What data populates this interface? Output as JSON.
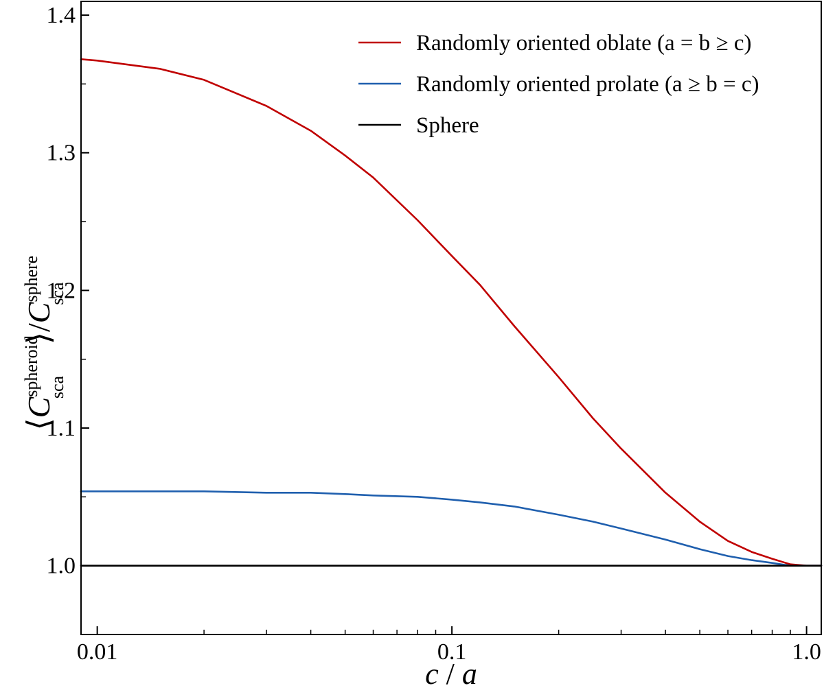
{
  "chart_data": {
    "type": "line",
    "xlabel": {
      "main": "c",
      "sep": " / ",
      "den": "a"
    },
    "ylabel": {
      "open": "⟨",
      "sym": "C",
      "sup1": "spheroid",
      "sub1": "sca",
      "close": "⟩/",
      "sym2": "C",
      "sup2": "sphere",
      "sub2": "sca"
    },
    "xscale": "log",
    "xlim": [
      0.009,
      1.1
    ],
    "ylim": [
      0.95,
      1.41
    ],
    "xticks": [
      {
        "value": 0.01,
        "label": "0.01"
      },
      {
        "value": 0.1,
        "label": "0.1"
      },
      {
        "value": 1.0,
        "label": "1.0"
      }
    ],
    "yticks": [
      {
        "value": 1.0,
        "label": "1.0"
      },
      {
        "value": 1.1,
        "label": "1.1"
      },
      {
        "value": 1.2,
        "label": "1.2"
      },
      {
        "value": 1.3,
        "label": "1.3"
      },
      {
        "value": 1.4,
        "label": "1.4"
      }
    ],
    "grid": false,
    "legend_position": "top-right",
    "series": [
      {
        "name": "Randomly oriented oblate (a = b ≥ c)",
        "color": "#c00000",
        "x": [
          0.009,
          0.01,
          0.015,
          0.02,
          0.03,
          0.04,
          0.05,
          0.06,
          0.08,
          0.1,
          0.12,
          0.15,
          0.2,
          0.25,
          0.3,
          0.4,
          0.5,
          0.6,
          0.7,
          0.8,
          0.9,
          1.0,
          1.1
        ],
        "y": [
          1.368,
          1.367,
          1.361,
          1.353,
          1.334,
          1.316,
          1.298,
          1.282,
          1.251,
          1.225,
          1.204,
          1.174,
          1.137,
          1.107,
          1.085,
          1.053,
          1.032,
          1.018,
          1.01,
          1.005,
          1.001,
          1.0,
          1.0
        ]
      },
      {
        "name": "Randomly oriented prolate (a ≥ b = c)",
        "color": "#1f5fae",
        "x": [
          0.009,
          0.01,
          0.015,
          0.02,
          0.03,
          0.04,
          0.05,
          0.06,
          0.08,
          0.1,
          0.12,
          0.15,
          0.2,
          0.25,
          0.3,
          0.4,
          0.5,
          0.6,
          0.7,
          0.8,
          0.9,
          1.0,
          1.1
        ],
        "y": [
          1.054,
          1.054,
          1.054,
          1.054,
          1.053,
          1.053,
          1.052,
          1.051,
          1.05,
          1.048,
          1.046,
          1.043,
          1.037,
          1.032,
          1.027,
          1.019,
          1.012,
          1.007,
          1.004,
          1.002,
          1.0,
          1.0,
          1.0
        ]
      },
      {
        "name": "Sphere",
        "color": "#000000",
        "x": [
          0.009,
          1.1
        ],
        "y": [
          1.0,
          1.0
        ]
      }
    ]
  }
}
